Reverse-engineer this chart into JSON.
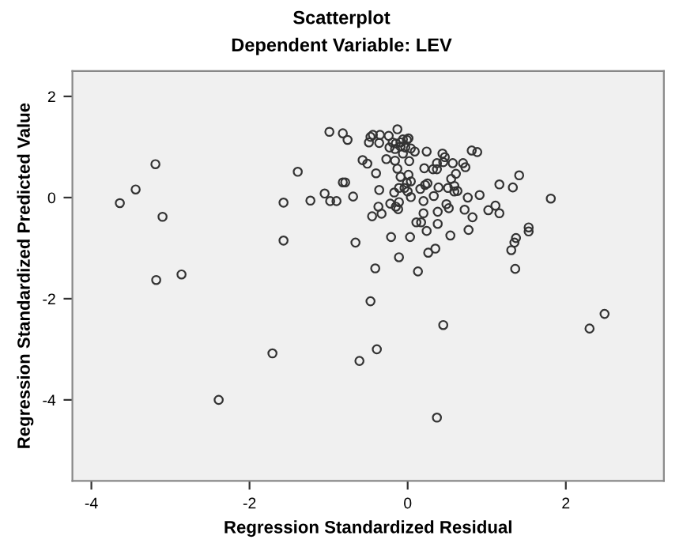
{
  "chart_data": {
    "type": "scatter",
    "title": "Scatterplot",
    "subtitle": "Dependent Variable: LEV",
    "xlabel": "Regression Standardized Residual",
    "ylabel": "Regression Standardized Predicted Value",
    "xlim": [
      -4.24,
      3.24
    ],
    "ylim": [
      -5.6,
      2.5
    ],
    "xticks": [
      -4,
      -2,
      0,
      2
    ],
    "yticks": [
      -4,
      -2,
      0,
      2
    ],
    "grid": false,
    "marker": "circle",
    "series": [
      {
        "color": "#333333",
        "x": [
          -0.99,
          -0.82,
          -0.76,
          -3.19,
          -1.39,
          -0.57,
          -0.51,
          -3.44,
          -3.64,
          -3.1,
          -1.57,
          -1.23,
          -1.05,
          -0.98,
          -0.9,
          -0.82,
          -0.79,
          -0.69,
          -1.57,
          -0.66,
          -0.45,
          -3.18,
          -2.86,
          -0.41,
          -0.47,
          -0.39,
          -0.61,
          -1.71,
          -2.39,
          0.45,
          0.37,
          2.3,
          2.49,
          0.13,
          1.36,
          -0.11,
          0.26,
          0.35,
          -0.21,
          0.03,
          0.24,
          0.11,
          0.17,
          0.38,
          0.54,
          0.77,
          0.2,
          0.38,
          0.72,
          0.82,
          0.49,
          -0.33,
          -0.37,
          -0.22,
          -0.15,
          -0.11,
          -0.12,
          0.04,
          0.2,
          0.33,
          0.52,
          0.59,
          0.76,
          0.91,
          1.02,
          1.11,
          1.16,
          1.16,
          1.33,
          1.41,
          1.81,
          1.53,
          1.53,
          1.37,
          1.35,
          1.31,
          -0.36,
          -0.17,
          -0.11,
          -0.04,
          0.0,
          -0.01,
          0.04,
          0.16,
          0.22,
          0.25,
          0.39,
          0.51,
          0.59,
          0.63,
          0.55,
          0.61,
          0.7,
          0.73,
          0.57,
          0.45,
          0.47,
          0.44,
          0.37,
          0.32,
          0.37,
          0.21,
          -0.13,
          -0.09,
          0.01,
          -0.4,
          -0.27,
          -0.16,
          -0.06,
          0.02,
          0.24,
          0.09,
          0.81,
          0.88,
          -0.47,
          -0.44,
          -0.35,
          -0.49,
          -0.36,
          -0.24,
          -0.13,
          -0.19,
          -0.15,
          -0.09,
          -0.06,
          -0.01,
          0.01,
          -0.23,
          -0.16,
          -0.09,
          -0.03,
          0.04
        ],
        "values": [
          1.3,
          1.27,
          1.14,
          0.66,
          0.51,
          0.74,
          0.67,
          0.16,
          -0.11,
          -0.38,
          -0.1,
          -0.06,
          0.08,
          -0.07,
          -0.07,
          0.3,
          0.3,
          0.02,
          -0.85,
          -0.89,
          -0.37,
          -1.63,
          -1.52,
          -1.4,
          -2.05,
          -3.0,
          -3.23,
          -3.08,
          -4.0,
          -2.52,
          -4.35,
          -2.59,
          -2.3,
          -1.46,
          -1.41,
          -1.18,
          -1.09,
          -1.01,
          -0.78,
          -0.78,
          -0.66,
          -0.49,
          -0.49,
          -0.52,
          -0.75,
          -0.64,
          -0.31,
          -0.28,
          -0.24,
          -0.39,
          -0.13,
          -0.32,
          -0.18,
          -0.12,
          -0.18,
          -0.09,
          -0.23,
          0.01,
          -0.07,
          0.03,
          -0.21,
          0.12,
          0.0,
          0.05,
          -0.25,
          -0.16,
          -0.31,
          0.26,
          0.2,
          0.44,
          -0.02,
          -0.59,
          -0.67,
          -0.8,
          -0.89,
          -1.04,
          0.15,
          0.1,
          0.19,
          0.19,
          0.12,
          0.29,
          0.32,
          0.17,
          0.25,
          0.28,
          0.2,
          0.19,
          0.23,
          0.13,
          0.37,
          0.47,
          0.68,
          0.6,
          0.68,
          0.7,
          0.8,
          0.87,
          0.68,
          0.56,
          0.56,
          0.58,
          0.57,
          0.41,
          0.45,
          0.48,
          0.76,
          0.73,
          0.87,
          0.72,
          0.91,
          0.91,
          0.93,
          0.9,
          1.2,
          1.24,
          1.24,
          1.09,
          1.08,
          1.22,
          1.35,
          1.09,
          1.07,
          1.09,
          1.15,
          1.14,
          1.17,
          0.99,
          0.96,
          1.01,
          0.99,
          0.97
        ]
      }
    ]
  }
}
